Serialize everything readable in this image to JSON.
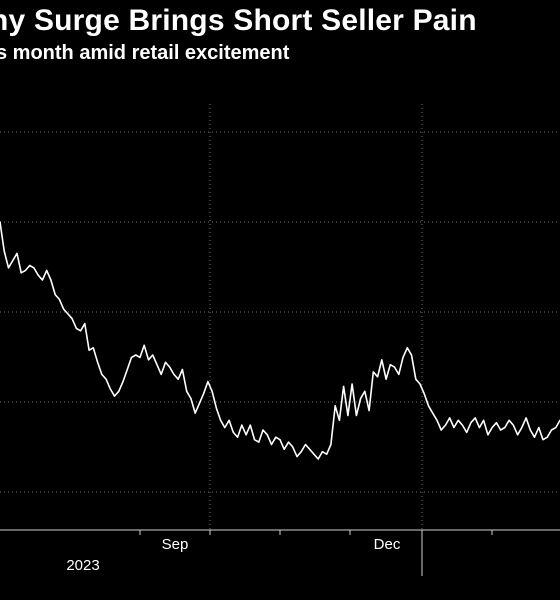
{
  "header": {
    "title": "ny Surge Brings Short Seller Pain",
    "subtitle": "s month amid retail excitement"
  },
  "chart_data": {
    "type": "line",
    "title": "ny Surge Brings Short Seller Pain",
    "subtitle": "s month amid retail excitement",
    "xlabel": "",
    "ylabel": "",
    "x_tick_labels": [
      "Sep",
      "Dec"
    ],
    "year_labels": [
      "2023"
    ],
    "grid": "dotted",
    "series": [
      {
        "values": [
          100,
          88,
          81,
          84,
          87,
          79,
          80,
          82,
          81,
          78,
          76,
          80,
          76,
          70,
          68,
          64,
          62,
          60,
          56,
          55,
          58,
          47,
          48,
          42,
          37,
          35,
          31,
          28,
          30,
          34,
          39,
          44,
          45,
          44,
          49,
          43,
          45,
          41,
          37,
          42,
          40,
          37,
          35,
          39,
          30,
          27,
          21,
          25,
          29,
          34,
          30,
          23,
          18,
          15,
          18,
          13,
          11,
          16,
          12,
          16,
          10,
          9,
          14,
          12,
          8,
          11,
          10,
          6,
          9,
          7,
          3,
          5,
          8,
          6,
          4,
          2,
          5,
          4,
          8,
          24,
          18,
          32,
          20,
          33,
          20,
          27,
          30,
          22,
          38,
          36,
          43,
          35,
          41,
          40,
          37,
          44,
          48,
          45,
          35,
          33,
          29,
          24,
          21,
          18,
          14,
          16,
          19,
          15,
          18,
          16,
          13,
          17,
          19,
          15,
          18,
          12,
          15,
          17,
          14,
          15,
          18,
          16,
          12,
          15,
          19,
          14,
          11,
          15,
          10,
          11,
          14,
          15,
          18
        ]
      }
    ]
  }
}
